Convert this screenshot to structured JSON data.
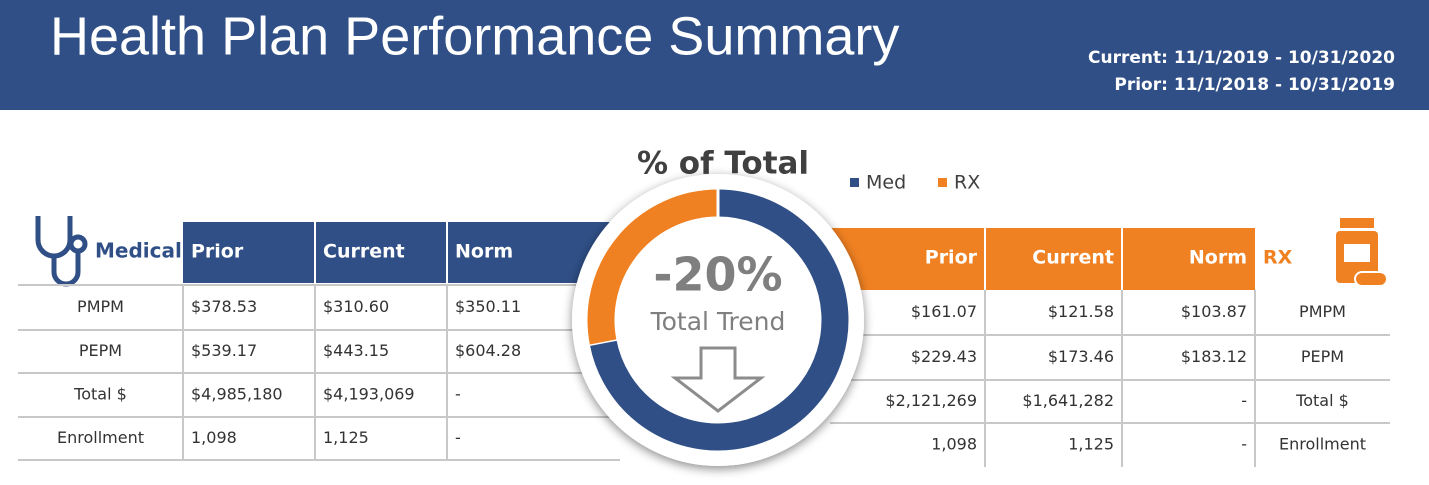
{
  "header": {
    "title": "Health Plan Performance Summary",
    "current": "Current: 11/1/2019 - 10/31/2020",
    "prior": "Prior: 11/1/2018 - 10/31/2019"
  },
  "medical": {
    "label": "Medical",
    "columns": [
      "Prior",
      "Current",
      "Norm"
    ],
    "rows": [
      [
        "PMPM",
        "$378.53",
        "$310.60",
        "$350.11"
      ],
      [
        "PEPM",
        "$539.17",
        "$443.15",
        "$604.28"
      ],
      [
        "Total $",
        "$4,985,180",
        "$4,193,069",
        "-"
      ],
      [
        "Enrollment",
        "1,098",
        "1,125",
        "-"
      ]
    ]
  },
  "rx": {
    "label": "RX",
    "columns": [
      "Prior",
      "Current",
      "Norm"
    ],
    "rows": [
      [
        "$161.07",
        "$121.58",
        "$103.87",
        "PMPM"
      ],
      [
        "$229.43",
        "$173.46",
        "$183.12",
        "PEPM"
      ],
      [
        "$2,121,269",
        "$1,641,282",
        "-",
        "Total $"
      ],
      [
        "1,098",
        "1,125",
        "-",
        "Enrollment"
      ]
    ]
  },
  "chart_data": {
    "type": "donut",
    "title": "% of Total",
    "categories": [
      "Med",
      "RX"
    ],
    "values": [
      72,
      28
    ],
    "colors": [
      "#2f4f86",
      "#f08122"
    ],
    "annotations": [
      "-20%",
      "Total Trend"
    ]
  }
}
